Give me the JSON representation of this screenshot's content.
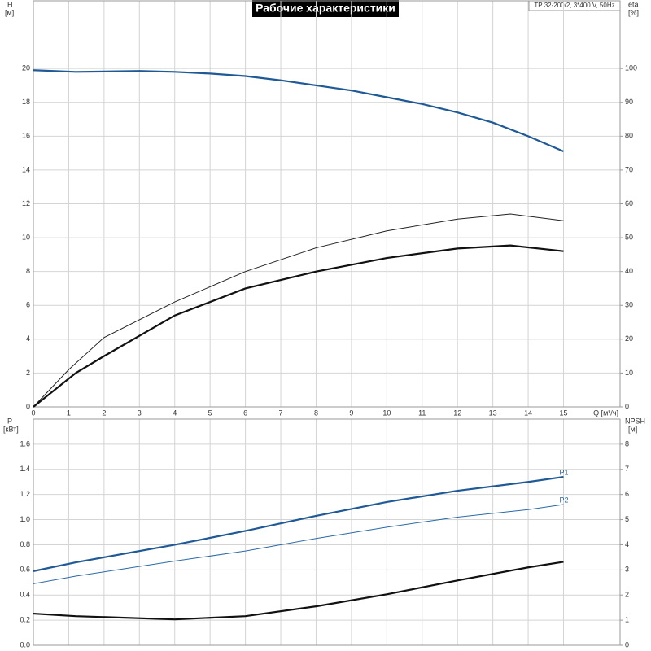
{
  "chart_data": [
    {
      "type": "line",
      "title": "Рабочие характеристики",
      "subtitle": "TP 32-200/2, 3*400 V, 50Hz",
      "ylabel": "H",
      "ylabel_unit": "[м]",
      "y2label": "eta",
      "y2label_unit": "[%]",
      "xlabel": "Q [м³/ч]",
      "xlim": [
        0,
        16.6
      ],
      "xticks": [
        0,
        1,
        2,
        3,
        4,
        5,
        6,
        7,
        8,
        9,
        10,
        11,
        12,
        13,
        14,
        15
      ],
      "ylim": [
        0,
        24
      ],
      "yticks": [
        0,
        2,
        4,
        6,
        8,
        10,
        12,
        14,
        16,
        18,
        20
      ],
      "y2lim": [
        0,
        120
      ],
      "y2ticks": [
        0,
        10,
        20,
        30,
        40,
        50,
        60,
        70,
        80,
        90,
        100
      ],
      "grid": true,
      "series": [
        {
          "color": "#1f5a96",
          "line": "thick",
          "x": [
            0,
            1.2,
            3,
            4,
            5,
            6,
            7,
            8,
            9,
            10,
            11,
            12,
            13,
            14,
            15
          ],
          "values": [
            19.9,
            19.8,
            19.85,
            19.8,
            19.7,
            19.55,
            19.3,
            19.0,
            18.7,
            18.3,
            17.9,
            17.4,
            16.8,
            16.0,
            15.1
          ]
        },
        {
          "color": "#222222",
          "line": "thin",
          "axis": "y2",
          "x": [
            0,
            1,
            2,
            4,
            6,
            8,
            10,
            12,
            13.5,
            15
          ],
          "values": [
            0,
            11,
            20.5,
            31,
            40,
            47,
            52,
            55.5,
            57,
            55
          ]
        },
        {
          "color": "#111111",
          "line": "thick",
          "axis": "y2",
          "x": [
            0,
            1.2,
            2,
            4,
            6,
            8,
            10,
            12,
            13.5,
            15
          ],
          "values": [
            0,
            10,
            15,
            27,
            35,
            40,
            44,
            46.8,
            47.7,
            46
          ]
        }
      ]
    },
    {
      "type": "line",
      "ylabel": "P",
      "ylabel_unit": "[кВт]",
      "y2label": "NPSH",
      "y2label_unit": "[м]",
      "ylim": [
        0,
        1.8
      ],
      "yticks": [
        {
          "value": 0,
          "label": "0.0"
        },
        0.2,
        0.4,
        0.6,
        0.8,
        {
          "value": 1,
          "label": "1.0"
        },
        1.2,
        1.4,
        1.6
      ],
      "y2lim": [
        0,
        9
      ],
      "y2ticks": [
        0,
        1,
        2,
        3,
        4,
        5,
        6,
        7,
        8
      ],
      "grid": true,
      "series": [
        {
          "name": "P1",
          "color": "#1f5a96",
          "line": "thick",
          "x": [
            0,
            1.2,
            4,
            6,
            8,
            10,
            12,
            14,
            15
          ],
          "values": [
            0.59,
            0.66,
            0.8,
            0.91,
            1.03,
            1.14,
            1.23,
            1.3,
            1.34
          ]
        },
        {
          "name": "P2",
          "color": "#2a6aa8",
          "line": "thin",
          "x": [
            0,
            1.2,
            4,
            6,
            8,
            10,
            12,
            14,
            15
          ],
          "values": [
            0.49,
            0.55,
            0.67,
            0.75,
            0.85,
            0.94,
            1.02,
            1.08,
            1.12
          ]
        },
        {
          "color": "#111111",
          "line": "thick",
          "axis": "y2",
          "x": [
            0,
            1.2,
            4,
            6,
            8,
            10,
            12,
            14,
            15
          ],
          "values": [
            1.26,
            1.16,
            1.03,
            1.16,
            1.55,
            2.03,
            2.58,
            3.1,
            3.32
          ]
        }
      ]
    }
  ]
}
